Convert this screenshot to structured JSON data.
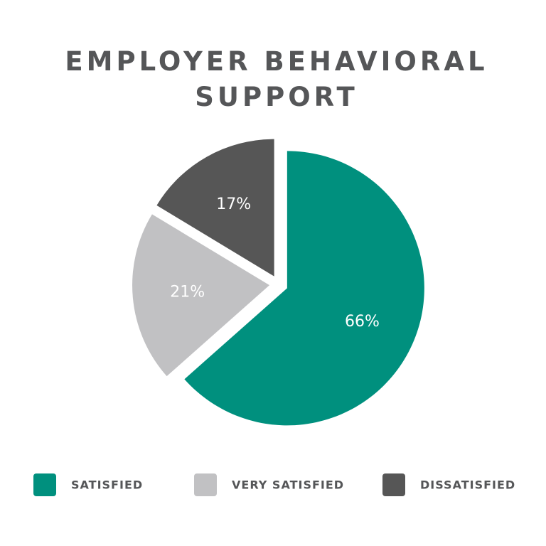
{
  "chart_data": {
    "type": "pie",
    "title": "EMPLOYER BEHAVIORAL SUPPORT",
    "categories": [
      "SATISFIED",
      "VERY SATISFIED",
      "DISSATISFIED"
    ],
    "values": [
      66,
      21,
      17
    ],
    "value_labels": [
      "66%",
      "21%",
      "17%"
    ],
    "colors": [
      "#00907e",
      "#c1c1c3",
      "#565656"
    ],
    "legend": "bottom"
  }
}
